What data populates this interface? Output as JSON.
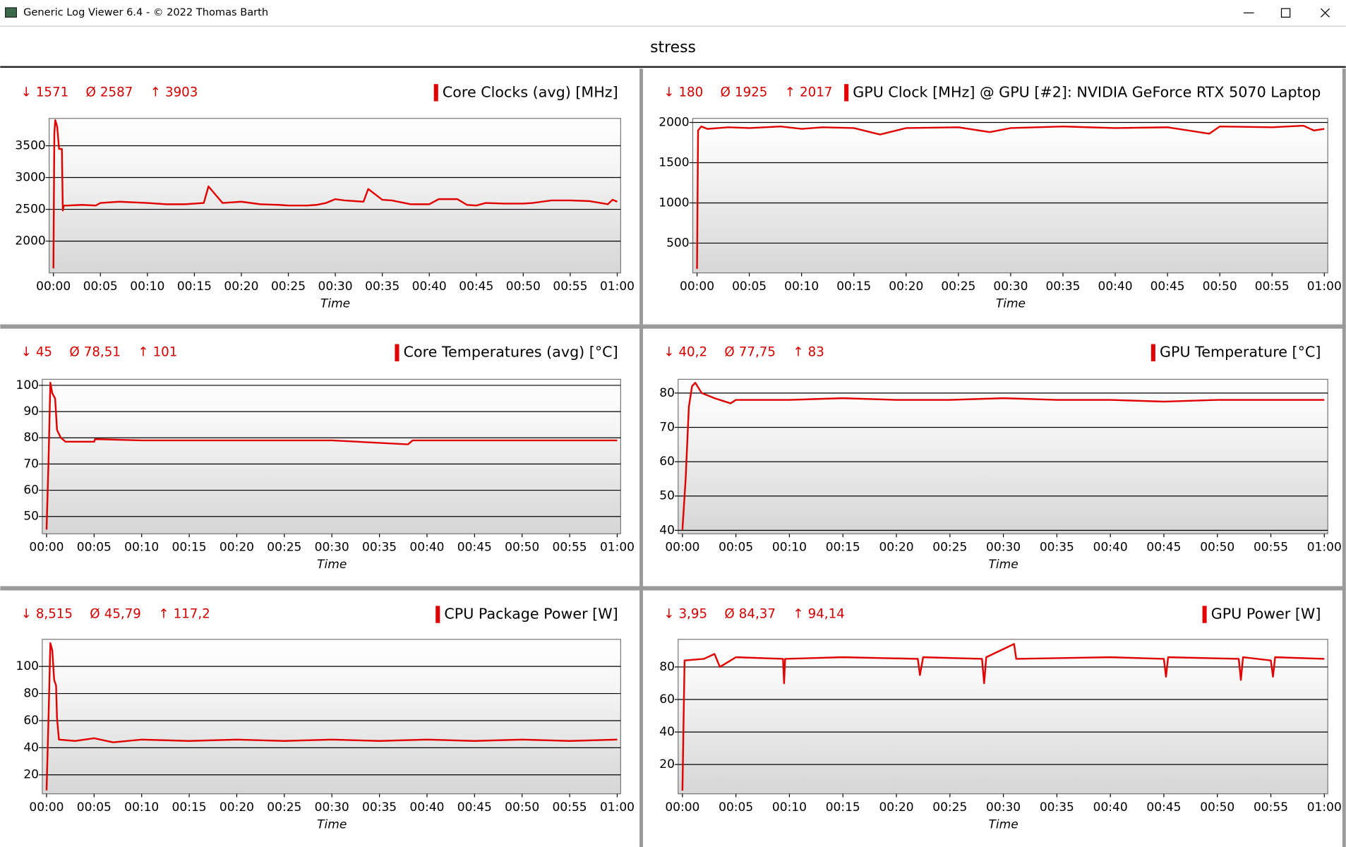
{
  "window": {
    "title": "Generic Log Viewer 6.4 - © 2022 Thomas Barth"
  },
  "header": {
    "title": "stress"
  },
  "chart_data": [
    {
      "type": "line",
      "xlabel": "Time",
      "grid": true,
      "stats": [
        {
          "symbol": "↓",
          "text": "1571"
        },
        {
          "symbol": "Ø",
          "text": "2587"
        },
        {
          "symbol": "↑",
          "text": "3903"
        }
      ],
      "xlim": [
        0,
        60
      ],
      "xticks": [
        {
          "value": 0,
          "label": "00:00"
        },
        {
          "value": 5,
          "label": "00:05"
        },
        {
          "value": 10,
          "label": "00:10"
        },
        {
          "value": 15,
          "label": "00:15"
        },
        {
          "value": 20,
          "label": "00:20"
        },
        {
          "value": 25,
          "label": "00:25"
        },
        {
          "value": 30,
          "label": "00:30"
        },
        {
          "value": 35,
          "label": "00:35"
        },
        {
          "value": 40,
          "label": "00:40"
        },
        {
          "value": 45,
          "label": "00:45"
        },
        {
          "value": 50,
          "label": "00:50"
        },
        {
          "value": 55,
          "label": "00:55"
        },
        {
          "value": 60,
          "label": "01:00"
        }
      ],
      "ylim": [
        1500,
        3930
      ],
      "yticks": [
        2000,
        2500,
        3000,
        3500
      ],
      "x": [
        0,
        0.1,
        0.2,
        0.4,
        0.6,
        0.9,
        1.0,
        1.1,
        1.5,
        3,
        4.5,
        5,
        7,
        10,
        12,
        14,
        16,
        16.5,
        18,
        20,
        22,
        24,
        25,
        27,
        28,
        29,
        30,
        31,
        33,
        33.5,
        35,
        36,
        38,
        40,
        41,
        43,
        44,
        45,
        46,
        48,
        50,
        51,
        53,
        55,
        57,
        59,
        59.5,
        60
      ],
      "series": [
        {
          "name": "Core Clocks (avg) [MHz]",
          "color": "#e00000",
          "values": [
            1571,
            3700,
            3903,
            3800,
            3450,
            3450,
            2480,
            2560,
            2560,
            2570,
            2560,
            2600,
            2620,
            2600,
            2580,
            2580,
            2600,
            2860,
            2600,
            2620,
            2580,
            2570,
            2560,
            2560,
            2570,
            2600,
            2660,
            2640,
            2620,
            2820,
            2650,
            2640,
            2580,
            2580,
            2660,
            2660,
            2570,
            2560,
            2600,
            2590,
            2590,
            2600,
            2640,
            2640,
            2630,
            2580,
            2650,
            2620
          ]
        }
      ]
    },
    {
      "type": "line",
      "xlabel": "Time",
      "grid": true,
      "stats": [
        {
          "symbol": "↓",
          "text": "180"
        },
        {
          "symbol": "Ø",
          "text": "1925"
        },
        {
          "symbol": "↑",
          "text": "2017"
        }
      ],
      "xlim": [
        0,
        60
      ],
      "xticks": [
        {
          "value": 0,
          "label": "00:00"
        },
        {
          "value": 5,
          "label": "00:05"
        },
        {
          "value": 10,
          "label": "00:10"
        },
        {
          "value": 15,
          "label": "00:15"
        },
        {
          "value": 20,
          "label": "00:20"
        },
        {
          "value": 25,
          "label": "00:25"
        },
        {
          "value": 30,
          "label": "00:30"
        },
        {
          "value": 35,
          "label": "00:35"
        },
        {
          "value": 40,
          "label": "00:40"
        },
        {
          "value": 45,
          "label": "00:45"
        },
        {
          "value": 50,
          "label": "00:50"
        },
        {
          "value": 55,
          "label": "00:55"
        },
        {
          "value": 60,
          "label": "01:00"
        }
      ],
      "ylim": [
        130,
        2050
      ],
      "yticks": [
        500,
        1000,
        1500,
        2000
      ],
      "x": [
        0,
        0.1,
        0.4,
        1,
        3,
        5,
        8,
        10,
        12,
        15,
        17.5,
        20,
        25,
        28,
        30,
        35,
        40,
        45,
        49,
        50,
        55,
        58,
        59,
        60
      ],
      "series": [
        {
          "name": "GPU Clock [MHz] @ GPU [#2]: NVIDIA GeForce RTX 5070 Laptop",
          "color": "#e00000",
          "values": [
            180,
            1900,
            1950,
            1920,
            1940,
            1930,
            1950,
            1920,
            1940,
            1930,
            1850,
            1930,
            1940,
            1880,
            1930,
            1950,
            1930,
            1940,
            1860,
            1950,
            1940,
            1960,
            1900,
            1920
          ]
        }
      ]
    },
    {
      "type": "line",
      "xlabel": "Time",
      "grid": true,
      "stats": [
        {
          "symbol": "↓",
          "text": "45"
        },
        {
          "symbol": "Ø",
          "text": "78,51"
        },
        {
          "symbol": "↑",
          "text": "101"
        }
      ],
      "xlim": [
        0,
        60
      ],
      "xticks": [
        {
          "value": 0,
          "label": "00:00"
        },
        {
          "value": 5,
          "label": "00:05"
        },
        {
          "value": 10,
          "label": "00:10"
        },
        {
          "value": 15,
          "label": "00:15"
        },
        {
          "value": 20,
          "label": "00:20"
        },
        {
          "value": 25,
          "label": "00:25"
        },
        {
          "value": 30,
          "label": "00:30"
        },
        {
          "value": 35,
          "label": "00:35"
        },
        {
          "value": 40,
          "label": "00:40"
        },
        {
          "value": 45,
          "label": "00:45"
        },
        {
          "value": 50,
          "label": "00:50"
        },
        {
          "value": 55,
          "label": "00:55"
        },
        {
          "value": 60,
          "label": "01:00"
        }
      ],
      "ylim": [
        43.4,
        102.3
      ],
      "yticks": [
        50,
        60,
        70,
        80,
        90,
        100
      ],
      "x": [
        0,
        0.2,
        0.4,
        0.6,
        0.9,
        1.1,
        1.5,
        2,
        5,
        5.1,
        10,
        20,
        30,
        38,
        38.5,
        45,
        50,
        55,
        60
      ],
      "series": [
        {
          "name": "Core Temperatures (avg) [°C]",
          "color": "#e00000",
          "values": [
            45,
            70,
            101,
            97,
            95,
            83,
            80,
            78.5,
            78.5,
            79.5,
            79,
            79,
            79,
            77.5,
            79,
            79,
            79,
            79,
            79
          ]
        }
      ]
    },
    {
      "type": "line",
      "xlabel": "Time",
      "grid": true,
      "stats": [
        {
          "symbol": "↓",
          "text": "40,2"
        },
        {
          "symbol": "Ø",
          "text": "77,75"
        },
        {
          "symbol": "↑",
          "text": "83"
        }
      ],
      "xlim": [
        0,
        60
      ],
      "xticks": [
        {
          "value": 0,
          "label": "00:00"
        },
        {
          "value": 5,
          "label": "00:05"
        },
        {
          "value": 10,
          "label": "00:10"
        },
        {
          "value": 15,
          "label": "00:15"
        },
        {
          "value": 20,
          "label": "00:20"
        },
        {
          "value": 25,
          "label": "00:25"
        },
        {
          "value": 30,
          "label": "00:30"
        },
        {
          "value": 35,
          "label": "00:35"
        },
        {
          "value": 40,
          "label": "00:40"
        },
        {
          "value": 45,
          "label": "00:45"
        },
        {
          "value": 50,
          "label": "00:50"
        },
        {
          "value": 55,
          "label": "00:55"
        },
        {
          "value": 60,
          "label": "01:00"
        }
      ],
      "ylim": [
        39,
        84
      ],
      "yticks": [
        40,
        50,
        60,
        70,
        80
      ],
      "x": [
        0,
        0.3,
        0.6,
        0.9,
        1.2,
        1.8,
        3,
        4.5,
        5,
        10,
        15,
        20,
        25,
        30,
        35,
        40,
        45,
        50,
        55,
        60
      ],
      "series": [
        {
          "name": "GPU Temperature [°C]",
          "color": "#e00000",
          "values": [
            40.2,
            55,
            76,
            82,
            83,
            80,
            78.5,
            77,
            78,
            78,
            78.5,
            78,
            78,
            78.5,
            78,
            78,
            77.5,
            78,
            78,
            78
          ]
        }
      ]
    },
    {
      "type": "line",
      "xlabel": "Time",
      "grid": true,
      "stats": [
        {
          "symbol": "↓",
          "text": "8,515"
        },
        {
          "symbol": "Ø",
          "text": "45,79"
        },
        {
          "symbol": "↑",
          "text": "117,2"
        }
      ],
      "xlim": [
        0,
        60
      ],
      "xticks": [
        {
          "value": 0,
          "label": "00:00"
        },
        {
          "value": 5,
          "label": "00:05"
        },
        {
          "value": 10,
          "label": "00:10"
        },
        {
          "value": 15,
          "label": "00:15"
        },
        {
          "value": 20,
          "label": "00:20"
        },
        {
          "value": 25,
          "label": "00:25"
        },
        {
          "value": 30,
          "label": "00:30"
        },
        {
          "value": 35,
          "label": "00:35"
        },
        {
          "value": 40,
          "label": "00:40"
        },
        {
          "value": 45,
          "label": "00:45"
        },
        {
          "value": 50,
          "label": "00:50"
        },
        {
          "value": 55,
          "label": "00:55"
        },
        {
          "value": 60,
          "label": "01:00"
        }
      ],
      "ylim": [
        6,
        120
      ],
      "yticks": [
        20,
        40,
        60,
        80,
        100
      ],
      "x": [
        0,
        0.2,
        0.4,
        0.6,
        0.8,
        1,
        1.1,
        1.3,
        3,
        5,
        7,
        10,
        15,
        20,
        25,
        30,
        35,
        40,
        45,
        50,
        55,
        60
      ],
      "series": [
        {
          "name": "CPU Package Power [W]",
          "color": "#e00000",
          "values": [
            8.515,
            60,
            117.2,
            112,
            90,
            86,
            62,
            46,
            45,
            47,
            44,
            46,
            45,
            46,
            45,
            46,
            45,
            46,
            45,
            46,
            45,
            46
          ]
        }
      ]
    },
    {
      "type": "line",
      "xlabel": "Time",
      "grid": true,
      "stats": [
        {
          "symbol": "↓",
          "text": "3,95"
        },
        {
          "symbol": "Ø",
          "text": "84,37"
        },
        {
          "symbol": "↑",
          "text": "94,14"
        }
      ],
      "xlim": [
        0,
        60
      ],
      "xticks": [
        {
          "value": 0,
          "label": "00:00"
        },
        {
          "value": 5,
          "label": "00:05"
        },
        {
          "value": 10,
          "label": "00:10"
        },
        {
          "value": 15,
          "label": "00:15"
        },
        {
          "value": 20,
          "label": "00:20"
        },
        {
          "value": 25,
          "label": "00:25"
        },
        {
          "value": 30,
          "label": "00:30"
        },
        {
          "value": 35,
          "label": "00:35"
        },
        {
          "value": 40,
          "label": "00:40"
        },
        {
          "value": 45,
          "label": "00:45"
        },
        {
          "value": 50,
          "label": "00:50"
        },
        {
          "value": 55,
          "label": "00:55"
        },
        {
          "value": 60,
          "label": "01:00"
        }
      ],
      "ylim": [
        2,
        97
      ],
      "yticks": [
        20,
        40,
        60,
        80
      ],
      "x": [
        0,
        0.2,
        2,
        3,
        3.5,
        5,
        9.4,
        9.5,
        9.6,
        15,
        22,
        22.2,
        22.5,
        28,
        28.2,
        28.4,
        31,
        31.2,
        40,
        45,
        45.2,
        45.4,
        52,
        52.2,
        52.4,
        55,
        55.2,
        55.4,
        60
      ],
      "series": [
        {
          "name": "GPU Power [W]",
          "color": "#e00000",
          "values": [
            3.95,
            84,
            85,
            88,
            80,
            86,
            85,
            70,
            85,
            86,
            85,
            75,
            86,
            85,
            70,
            86,
            94.14,
            85,
            86,
            85,
            74,
            86,
            85,
            72,
            86,
            84,
            74,
            86,
            85
          ]
        }
      ]
    }
  ]
}
